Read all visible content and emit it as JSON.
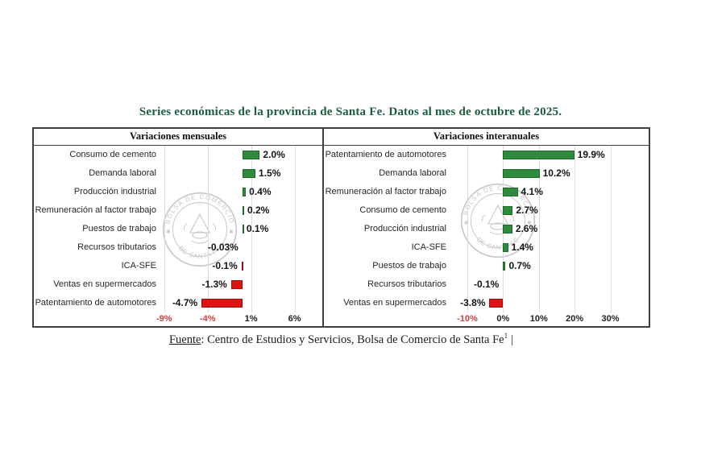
{
  "title": "Series económicas de la provincia de Santa Fe. Datos al mes de octubre de 2025.",
  "footer": {
    "label": "Fuente",
    "rest": ": Centro de Estudios y Servicios, Bolsa de Comercio de Santa Fe",
    "superscript": "1",
    "cursor": "|"
  },
  "watermark": {
    "arc_top": "BOLSA DE COMERCIO",
    "arc_bottom": "DE SANTA FE"
  },
  "colors": {
    "title_color": "#1b5c3e",
    "border_color": "#3f3f3f",
    "bar_positive": "#2e8b3c",
    "bar_positive_border": "#1f6a2b",
    "bar_negative": "#e01312",
    "bar_negative_border": "#9c0f0f",
    "tick_color": "#1f1f1f",
    "tick_negative": "#cc4444",
    "grid_color": "#dcdcdc",
    "watermark_color": "#c7c7c7"
  },
  "chart_data": [
    {
      "type": "bar",
      "orientation": "horizontal",
      "title": "Variaciones mensuales",
      "unit": "%",
      "xlim": [
        -9.35,
        8.45
      ],
      "grid": true,
      "legend": false,
      "rows": [
        {
          "label": "Consumo de cemento",
          "value": 2.0,
          "display": "2.0%"
        },
        {
          "label": "Demanda laboral",
          "value": 1.5,
          "display": "1.5%"
        },
        {
          "label": "Producción industrial",
          "value": 0.4,
          "display": "0.4%"
        },
        {
          "label": "Remuneración al factor trabajo",
          "value": 0.2,
          "display": "0.2%"
        },
        {
          "label": "Puestos de trabajo",
          "value": 0.1,
          "display": "0.1%"
        },
        {
          "label": "Recursos tributarios",
          "value": -0.03,
          "display": "-0.03%"
        },
        {
          "label": "ICA-SFE",
          "value": -0.1,
          "display": "-0.1%"
        },
        {
          "label": "Ventas en supermercados",
          "value": -1.3,
          "display": "-1.3%"
        },
        {
          "label": "Patentamiento de automotores",
          "value": -4.7,
          "display": "-4.7%"
        }
      ],
      "ticks": [
        {
          "label": "-9%",
          "value": -9,
          "negative": true
        },
        {
          "label": "-4%",
          "value": -4,
          "negative": true
        },
        {
          "label": "1%",
          "value": 1,
          "negative": false
        },
        {
          "label": "6%",
          "value": 6,
          "negative": false
        }
      ]
    },
    {
      "type": "bar",
      "orientation": "horizontal",
      "title": "Variaciones interanuales",
      "unit": "%",
      "xlim": [
        -14.5,
        38.9
      ],
      "grid": true,
      "legend": false,
      "rows": [
        {
          "label": "Patentamiento de automotores",
          "value": 19.9,
          "display": "19.9%"
        },
        {
          "label": "Demanda laboral",
          "value": 10.2,
          "display": "10.2%"
        },
        {
          "label": "Remuneración al factor trabajo",
          "value": 4.1,
          "display": "4.1%"
        },
        {
          "label": "Consumo de cemento",
          "value": 2.7,
          "display": "2.7%"
        },
        {
          "label": "Producción industrial",
          "value": 2.6,
          "display": "2.6%"
        },
        {
          "label": "ICA-SFE",
          "value": 1.4,
          "display": "1.4%"
        },
        {
          "label": "Puestos de trabajo",
          "value": 0.7,
          "display": "0.7%"
        },
        {
          "label": "Recursos tributarios",
          "value": -0.1,
          "display": "-0.1%"
        },
        {
          "label": "Ventas en supermercados",
          "value": -3.8,
          "display": "-3.8%"
        }
      ],
      "ticks": [
        {
          "label": "-10%",
          "value": -10,
          "negative": true
        },
        {
          "label": "0%",
          "value": 0,
          "negative": false
        },
        {
          "label": "10%",
          "value": 10,
          "negative": false
        },
        {
          "label": "20%",
          "value": 20,
          "negative": false
        },
        {
          "label": "30%",
          "value": 30,
          "negative": false
        }
      ]
    }
  ]
}
